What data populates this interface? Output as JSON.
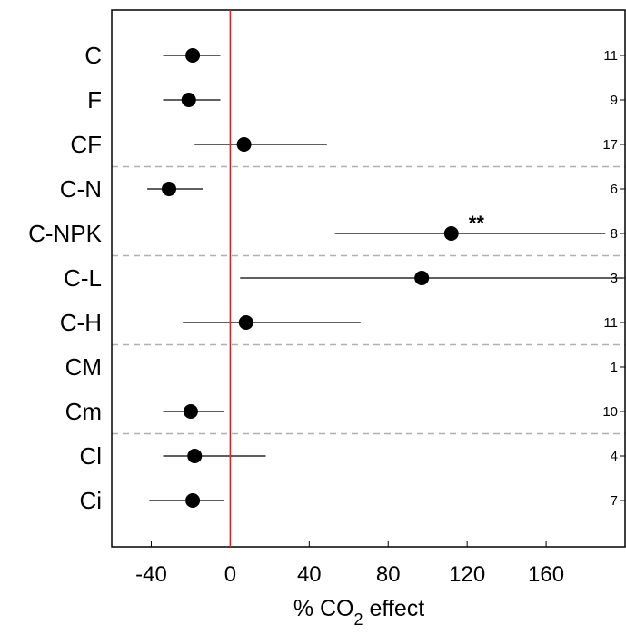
{
  "chart_data": {
    "type": "forest",
    "categories": [
      "C",
      "F",
      "CF",
      "C-N",
      "C-NPK",
      "C-L",
      "C-H",
      "CM",
      "Cm",
      "Cl",
      "Ci"
    ],
    "points": [
      {
        "label": "C",
        "mean": -19,
        "low": -34,
        "high": -5,
        "n": "11",
        "sig": ""
      },
      {
        "label": "F",
        "mean": -21,
        "low": -34,
        "high": -5,
        "n": "9",
        "sig": ""
      },
      {
        "label": "CF",
        "mean": 7,
        "low": -18,
        "high": 49,
        "n": "17",
        "sig": ""
      },
      {
        "label": "C-N",
        "mean": -31,
        "low": -42,
        "high": -14,
        "n": "6",
        "sig": ""
      },
      {
        "label": "C-NPK",
        "mean": 112,
        "low": 53,
        "high": 190,
        "n": "8",
        "sig": "**"
      },
      {
        "label": "C-L",
        "mean": 97,
        "low": 5,
        "high": 199,
        "n": "3",
        "sig": ""
      },
      {
        "label": "C-H",
        "mean": 8,
        "low": -24,
        "high": 66,
        "n": "11",
        "sig": ""
      },
      {
        "label": "CM",
        "mean": null,
        "low": null,
        "high": null,
        "n": "1",
        "sig": ""
      },
      {
        "label": "Cm",
        "mean": -20,
        "low": -34,
        "high": -3,
        "n": "10",
        "sig": ""
      },
      {
        "label": "Cl",
        "mean": -18,
        "low": -34,
        "high": 18,
        "n": "4",
        "sig": ""
      },
      {
        "label": "Ci",
        "mean": -19,
        "low": -41,
        "high": -3,
        "n": "7",
        "sig": ""
      }
    ],
    "x_ticks": [
      -40,
      0,
      40,
      80,
      120,
      160
    ],
    "x_tick_labels": [
      "-40",
      "0",
      "40",
      "80",
      "120",
      "160"
    ],
    "xlim": [
      -60,
      200
    ],
    "xlabel_prefix": "% CO",
    "xlabel_sub": "2",
    "xlabel_suffix": " effect",
    "reference_line_x": 0,
    "reference_line_color": "#e02020",
    "group_separators_after": [
      "CF",
      "C-NPK",
      "C-H",
      "Cm"
    ],
    "separator_color": "#b0b0b0",
    "marker_color": "#000000"
  }
}
